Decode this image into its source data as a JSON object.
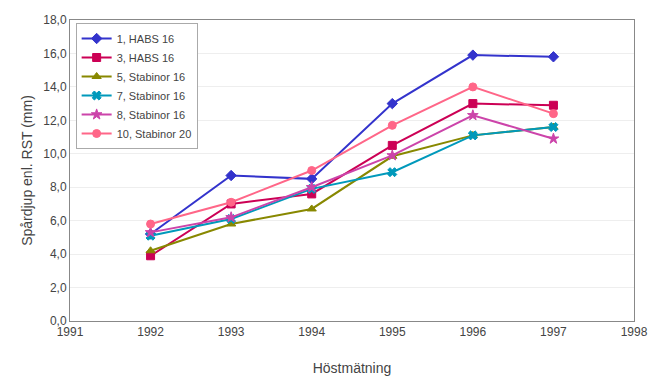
{
  "chart_data": {
    "type": "line",
    "x_label": "Höstmätning",
    "y_label": "Spårdjup enl. RST (mm)",
    "x": [
      1992,
      1993,
      1994,
      1995,
      1996,
      1997
    ],
    "series": [
      {
        "name": "1, HABS 16",
        "color": "#3333CC",
        "marker": "diamond",
        "values": [
          5.2,
          8.7,
          8.5,
          13.0,
          15.9,
          15.8
        ]
      },
      {
        "name": "3, HABS 16",
        "color": "#CC0055",
        "marker": "square",
        "values": [
          3.9,
          7.0,
          7.6,
          10.5,
          13.0,
          12.9
        ]
      },
      {
        "name": "5, Stabinor 16",
        "color": "#888800",
        "marker": "triangle-up",
        "values": [
          4.2,
          5.8,
          6.7,
          9.85,
          11.1,
          11.6
        ]
      },
      {
        "name": "7, Stabinor 16",
        "color": "#0099BB",
        "marker": "x",
        "values": [
          5.1,
          6.1,
          7.9,
          8.9,
          11.1,
          11.6
        ]
      },
      {
        "name": "8, Stabinor 16",
        "color": "#CC44AA",
        "marker": "star",
        "values": [
          5.3,
          6.2,
          8.0,
          9.9,
          12.3,
          10.9
        ]
      },
      {
        "name": "10, Stabinor 20",
        "color": "#FF6688",
        "marker": "circle",
        "values": [
          5.8,
          7.1,
          9.0,
          11.7,
          14.0,
          12.4
        ]
      }
    ],
    "xlim": [
      1991,
      1998
    ],
    "xticks": [
      1991,
      1992,
      1993,
      1994,
      1995,
      1996,
      1997,
      1998
    ],
    "ylim": [
      0.0,
      18.0
    ],
    "yticks": [
      {
        "value": 0,
        "label": "0,0"
      },
      {
        "value": 2,
        "label": "2,0"
      },
      {
        "value": 4,
        "label": "4,0"
      },
      {
        "value": 6,
        "label": "6,0"
      },
      {
        "value": 8,
        "label": "8,0"
      },
      {
        "value": 10,
        "label": "10,0"
      },
      {
        "value": 12,
        "label": "12,0"
      },
      {
        "value": 14,
        "label": "14,0"
      },
      {
        "value": 16,
        "label": "16,0"
      },
      {
        "value": 18,
        "label": "18,0"
      }
    ],
    "grid": true,
    "legend": "upper left"
  }
}
